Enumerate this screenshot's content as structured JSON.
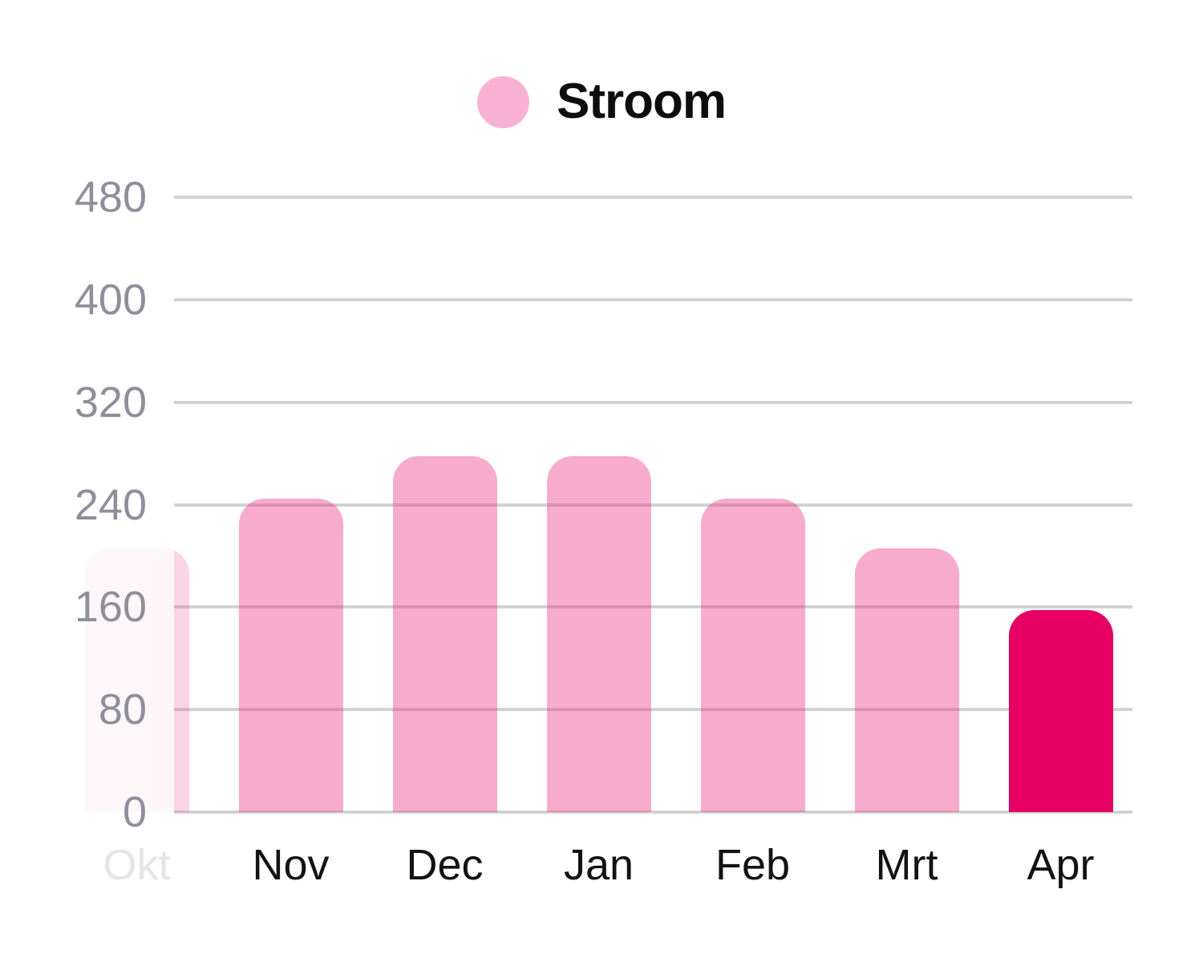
{
  "colors": {
    "background": "#ffffff",
    "series_fill": "rgba(234,44,131,0.40)",
    "series_fill_solid_equivalent": "#f7afd0",
    "highlight_fill": "#e70063",
    "faded_bar_opacity": 0.5,
    "gridline": "#d2d2d2",
    "y_label": "#8f8f9b",
    "x_label": "#131313",
    "x_label_faded": "#e6e4e8",
    "legend_dot": "#f8b1d2",
    "legend_text": "#0d0d0d"
  },
  "chart_data": {
    "type": "bar",
    "title": "Stroom",
    "legend_entries": [
      "Stroom"
    ],
    "legend_position": "top-center",
    "categories": [
      "Okt",
      "Nov",
      "Dec",
      "Jan",
      "Feb",
      "Mrt",
      "Apr"
    ],
    "values": [
      206,
      245,
      278,
      278,
      245,
      206,
      158
    ],
    "series": [
      {
        "name": "Stroom",
        "values": [
          206,
          245,
          278,
          278,
          245,
          206,
          158
        ]
      }
    ],
    "xlabel": "",
    "ylabel": "",
    "ylim": [
      0,
      480
    ],
    "yticks": [
      480,
      400,
      320,
      240,
      160,
      80,
      0
    ],
    "grid": "horizontal-only",
    "highlighted_category": "Apr",
    "faded_category": "Okt"
  }
}
